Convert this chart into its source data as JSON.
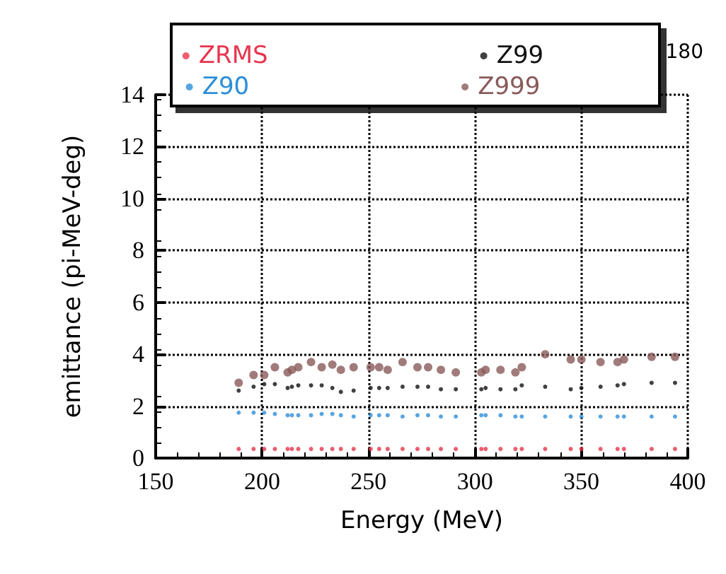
{
  "chart_data": {
    "type": "scatter",
    "xlabel": "Energy (MeV)",
    "ylabel": "emittance (pi-MeV-deg)",
    "annotations": [
      "180"
    ],
    "x": [
      189,
      196,
      201,
      206,
      212,
      214,
      217,
      223,
      228,
      233,
      237,
      243,
      251,
      255,
      259,
      266,
      273,
      278,
      284,
      291,
      303,
      305,
      312,
      319,
      322,
      333,
      345,
      350,
      359,
      367,
      370,
      383,
      394
    ],
    "series": [
      {
        "name": "ZRMS",
        "color": "#e8344e",
        "values": [
          0.35,
          0.35,
          0.35,
          0.35,
          0.35,
          0.35,
          0.35,
          0.35,
          0.35,
          0.35,
          0.35,
          0.35,
          0.35,
          0.35,
          0.35,
          0.35,
          0.35,
          0.35,
          0.35,
          0.35,
          0.35,
          0.35,
          0.35,
          0.35,
          0.35,
          0.35,
          0.35,
          0.35,
          0.35,
          0.35,
          0.35,
          0.35,
          0.35
        ]
      },
      {
        "name": "Z99",
        "color": "#111111",
        "values": [
          2.6,
          2.75,
          2.85,
          2.85,
          2.7,
          2.75,
          2.8,
          2.8,
          2.8,
          2.7,
          2.55,
          2.6,
          2.7,
          2.7,
          2.7,
          2.75,
          2.75,
          2.75,
          2.65,
          2.65,
          2.65,
          2.7,
          2.65,
          2.65,
          2.8,
          2.75,
          2.65,
          2.7,
          2.75,
          2.8,
          2.85,
          2.9,
          2.9
        ]
      },
      {
        "name": "Z90",
        "color": "#2e8ed8",
        "values": [
          1.75,
          1.75,
          1.75,
          1.7,
          1.65,
          1.65,
          1.65,
          1.65,
          1.7,
          1.7,
          1.65,
          1.6,
          1.65,
          1.65,
          1.65,
          1.6,
          1.65,
          1.65,
          1.6,
          1.6,
          1.65,
          1.65,
          1.65,
          1.6,
          1.6,
          1.6,
          1.6,
          1.6,
          1.6,
          1.6,
          1.6,
          1.6,
          1.6
        ]
      },
      {
        "name": "Z999",
        "color": "#8a5a5a",
        "values": [
          2.9,
          3.2,
          3.2,
          3.5,
          3.3,
          3.4,
          3.5,
          3.7,
          3.5,
          3.6,
          3.4,
          3.5,
          3.5,
          3.5,
          3.4,
          3.7,
          3.5,
          3.5,
          3.4,
          3.3,
          3.3,
          3.4,
          3.4,
          3.3,
          3.5,
          4.0,
          3.8,
          3.8,
          3.7,
          3.7,
          3.8,
          3.9,
          3.9
        ]
      }
    ],
    "xlim": [
      150,
      400
    ],
    "xticks": [
      150,
      200,
      250,
      300,
      350,
      400
    ],
    "ylim": [
      0,
      14
    ],
    "yticks": [
      0,
      2,
      4,
      6,
      8,
      10,
      12,
      14
    ],
    "grid": true,
    "legend": "top",
    "marker": "circle"
  }
}
